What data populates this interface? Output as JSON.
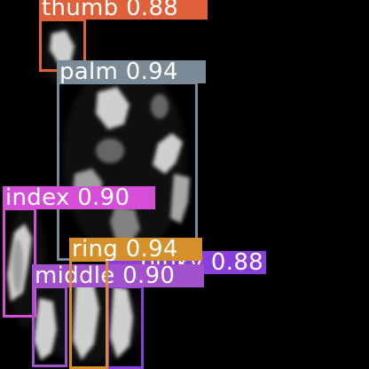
{
  "image": {
    "background": "#000000",
    "subject": "x-ray style grayscale view of a hand"
  },
  "detections": [
    {
      "label": "thumb",
      "score": "0.88",
      "color": "#e0603a"
    },
    {
      "label": "palm",
      "score": "0.94",
      "color": "#7a8a96"
    },
    {
      "label": "index",
      "score": "0.90",
      "color": "#d64ed8"
    },
    {
      "label": "pinky",
      "score": "0.88",
      "color": "#8a3fdc"
    },
    {
      "label": "middle",
      "score": "0.90",
      "color": "#a350cc"
    },
    {
      "label": "ring",
      "score": "0.94",
      "color": "#d6902a"
    }
  ]
}
